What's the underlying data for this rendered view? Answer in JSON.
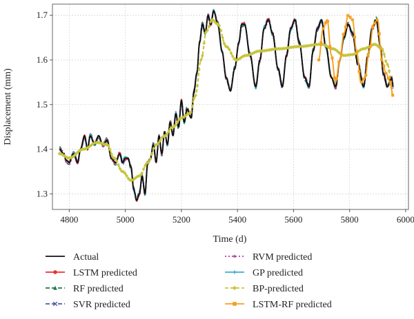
{
  "chart_data": {
    "type": "line",
    "title": "",
    "xlabel": "Time (d)",
    "ylabel": "Displacement (mm)",
    "xlim": [
      4740,
      6010
    ],
    "ylim": [
      1.265,
      1.725
    ],
    "x_ticks": [
      4800,
      5000,
      5200,
      5400,
      5600,
      5800,
      6000
    ],
    "y_ticks": [
      1.3,
      1.4,
      1.5,
      1.6,
      1.7
    ],
    "grid": true,
    "legend_position": "bottom",
    "series": [
      {
        "name": "Actual",
        "color": "#111111",
        "dash": "",
        "marker": "none"
      },
      {
        "name": "LSTM predicted",
        "color": "#e8312f",
        "dash": "",
        "marker": "circle"
      },
      {
        "name": "RF predicted",
        "color": "#1f7a52",
        "dash": "6,3",
        "marker": "triangle"
      },
      {
        "name": "SVR predicted",
        "color": "#4a5aa8",
        "dash": "6,3",
        "marker": "x"
      },
      {
        "name": "RVM predicted",
        "color": "#b0409a",
        "dash": "2,3",
        "marker": "star"
      },
      {
        "name": "GP predicted",
        "color": "#3bb0c9",
        "dash": "",
        "marker": "plus"
      },
      {
        "name": "BP-predicted",
        "color": "#c6c43a",
        "dash": "5,3",
        "marker": "diamond"
      },
      {
        "name": "LSTM-RF predicted",
        "color": "#f5a020",
        "dash": "",
        "marker": "square"
      }
    ],
    "actual_keypoints": [
      [
        4765,
        1.4
      ],
      [
        4780,
        1.39
      ],
      [
        4790,
        1.375
      ],
      [
        4800,
        1.37
      ],
      [
        4815,
        1.39
      ],
      [
        4830,
        1.37
      ],
      [
        4840,
        1.4
      ],
      [
        4855,
        1.43
      ],
      [
        4865,
        1.4
      ],
      [
        4875,
        1.43
      ],
      [
        4890,
        1.41
      ],
      [
        4905,
        1.43
      ],
      [
        4920,
        1.41
      ],
      [
        4935,
        1.42
      ],
      [
        4950,
        1.38
      ],
      [
        4965,
        1.37
      ],
      [
        4980,
        1.39
      ],
      [
        4990,
        1.37
      ],
      [
        5000,
        1.38
      ],
      [
        5010,
        1.38
      ],
      [
        5020,
        1.36
      ],
      [
        5030,
        1.31
      ],
      [
        5040,
        1.285
      ],
      [
        5050,
        1.3
      ],
      [
        5060,
        1.34
      ],
      [
        5070,
        1.3
      ],
      [
        5080,
        1.37
      ],
      [
        5090,
        1.38
      ],
      [
        5100,
        1.41
      ],
      [
        5110,
        1.37
      ],
      [
        5120,
        1.43
      ],
      [
        5130,
        1.39
      ],
      [
        5140,
        1.44
      ],
      [
        5150,
        1.41
      ],
      [
        5160,
        1.46
      ],
      [
        5170,
        1.43
      ],
      [
        5180,
        1.48
      ],
      [
        5190,
        1.45
      ],
      [
        5200,
        1.51
      ],
      [
        5210,
        1.46
      ],
      [
        5220,
        1.49
      ],
      [
        5235,
        1.47
      ],
      [
        5245,
        1.53
      ],
      [
        5255,
        1.57
      ],
      [
        5265,
        1.64
      ],
      [
        5275,
        1.68
      ],
      [
        5285,
        1.66
      ],
      [
        5295,
        1.7
      ],
      [
        5305,
        1.68
      ],
      [
        5315,
        1.71
      ],
      [
        5330,
        1.68
      ],
      [
        5345,
        1.62
      ],
      [
        5360,
        1.56
      ],
      [
        5375,
        1.53
      ],
      [
        5390,
        1.58
      ],
      [
        5405,
        1.64
      ],
      [
        5415,
        1.68
      ],
      [
        5425,
        1.68
      ],
      [
        5445,
        1.61
      ],
      [
        5465,
        1.54
      ],
      [
        5480,
        1.6
      ],
      [
        5495,
        1.67
      ],
      [
        5510,
        1.69
      ],
      [
        5525,
        1.66
      ],
      [
        5545,
        1.58
      ],
      [
        5560,
        1.54
      ],
      [
        5575,
        1.61
      ],
      [
        5590,
        1.67
      ],
      [
        5605,
        1.69
      ],
      [
        5620,
        1.64
      ],
      [
        5640,
        1.56
      ],
      [
        5655,
        1.54
      ],
      [
        5670,
        1.62
      ],
      [
        5685,
        1.67
      ],
      [
        5700,
        1.69
      ],
      [
        5715,
        1.63
      ],
      [
        5735,
        1.56
      ],
      [
        5750,
        1.54
      ],
      [
        5765,
        1.6
      ],
      [
        5780,
        1.65
      ],
      [
        5795,
        1.68
      ],
      [
        5810,
        1.66
      ],
      [
        5830,
        1.59
      ],
      [
        5850,
        1.54
      ],
      [
        5865,
        1.61
      ],
      [
        5880,
        1.67
      ],
      [
        5895,
        1.69
      ],
      [
        5910,
        1.63
      ],
      [
        5920,
        1.57
      ],
      [
        5935,
        1.54
      ],
      [
        5950,
        1.56
      ],
      [
        5955,
        1.54
      ]
    ],
    "bp_keypoints": [
      [
        4765,
        1.39
      ],
      [
        4800,
        1.38
      ],
      [
        4850,
        1.4
      ],
      [
        4900,
        1.415
      ],
      [
        4935,
        1.41
      ],
      [
        4960,
        1.38
      ],
      [
        4990,
        1.35
      ],
      [
        5020,
        1.33
      ],
      [
        5050,
        1.34
      ],
      [
        5080,
        1.37
      ],
      [
        5110,
        1.41
      ],
      [
        5140,
        1.43
      ],
      [
        5170,
        1.45
      ],
      [
        5200,
        1.47
      ],
      [
        5230,
        1.48
      ],
      [
        5250,
        1.52
      ],
      [
        5270,
        1.6
      ],
      [
        5290,
        1.665
      ],
      [
        5310,
        1.69
      ],
      [
        5330,
        1.68
      ],
      [
        5360,
        1.63
      ],
      [
        5395,
        1.6
      ],
      [
        5430,
        1.61
      ],
      [
        5480,
        1.62
      ],
      [
        5550,
        1.625
      ],
      [
        5620,
        1.63
      ],
      [
        5700,
        1.635
      ],
      [
        5740,
        1.625
      ],
      [
        5780,
        1.61
      ],
      [
        5810,
        1.612
      ],
      [
        5850,
        1.625
      ],
      [
        5890,
        1.635
      ],
      [
        5915,
        1.625
      ],
      [
        5935,
        1.59
      ],
      [
        5955,
        1.52
      ]
    ],
    "lstmrf_keypoints": [
      [
        5690,
        1.6
      ],
      [
        5705,
        1.67
      ],
      [
        5720,
        1.69
      ],
      [
        5735,
        1.61
      ],
      [
        5750,
        1.55
      ],
      [
        5765,
        1.6
      ],
      [
        5780,
        1.66
      ],
      [
        5795,
        1.7
      ],
      [
        5810,
        1.69
      ],
      [
        5825,
        1.62
      ],
      [
        5840,
        1.55
      ],
      [
        5855,
        1.56
      ],
      [
        5870,
        1.62
      ],
      [
        5885,
        1.68
      ],
      [
        5900,
        1.69
      ],
      [
        5915,
        1.6
      ],
      [
        5930,
        1.57
      ],
      [
        5945,
        1.55
      ],
      [
        5955,
        1.52
      ]
    ]
  }
}
